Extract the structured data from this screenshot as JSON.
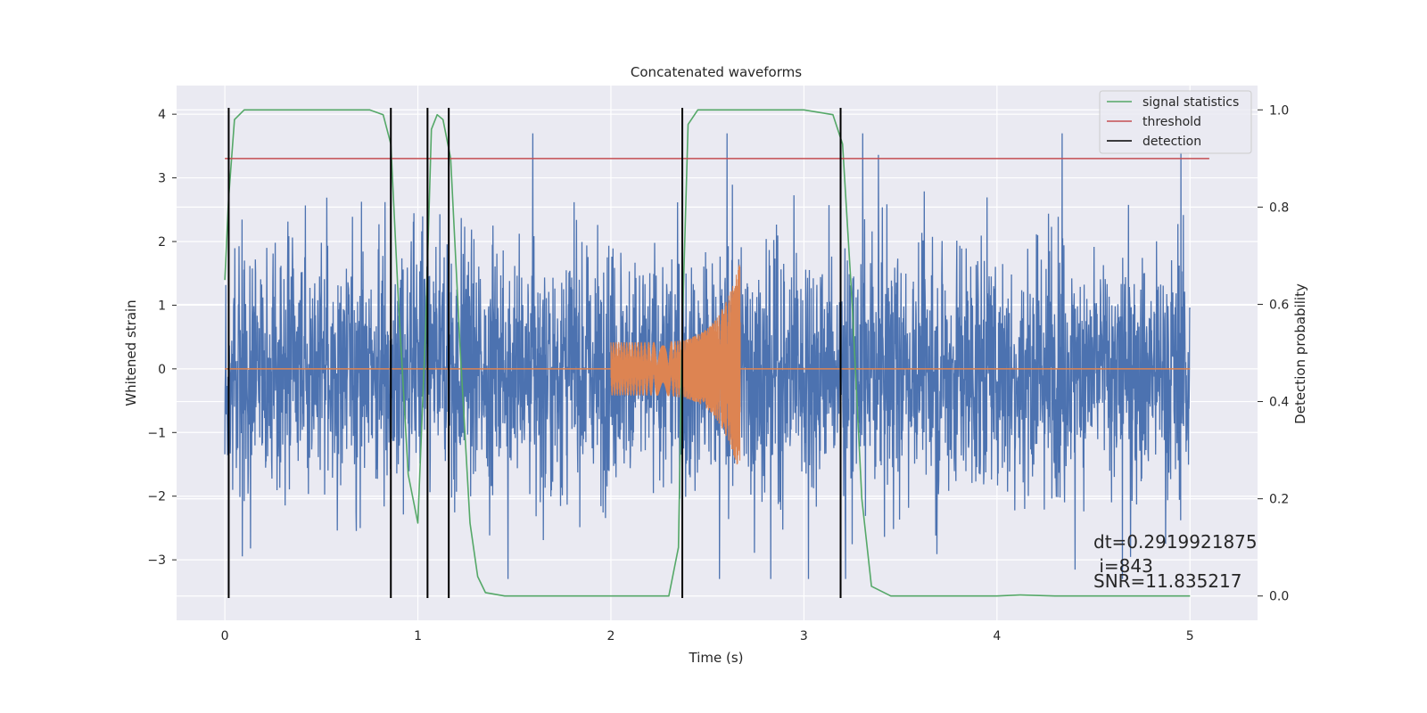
{
  "chart_data": {
    "type": "line",
    "title": "Concatenated waveforms",
    "xlabel": "Time (s)",
    "ylabel": "Whitened strain",
    "ylabel_right": "Detection probability",
    "xlim": [
      -0.25,
      5.35
    ],
    "ylim": [
      -3.95,
      4.45
    ],
    "ylim_right": [
      -0.05,
      1.05
    ],
    "xticks": [
      0,
      1,
      2,
      3,
      4,
      5
    ],
    "yticks": [
      -3,
      -2,
      -1,
      0,
      1,
      2,
      3,
      4
    ],
    "yticks_right": [
      0.0,
      0.2,
      0.4,
      0.6,
      0.8,
      1.0
    ],
    "xtick_labels": [
      "0",
      "1",
      "2",
      "3",
      "4",
      "5"
    ],
    "ytick_labels": [
      "−3",
      "−2",
      "−1",
      "0",
      "1",
      "2",
      "3",
      "4"
    ],
    "ytick_right_labels": [
      "0.0",
      "0.2",
      "0.4",
      "0.6",
      "0.8",
      "1.0"
    ],
    "grid": true,
    "legend_position": "top-right",
    "colors": {
      "background": "#eaeaf2",
      "noise": "#4c72b0",
      "injection": "#dd8452",
      "signal_statistics": "#55a868",
      "threshold": "#c44e52",
      "detection": "#000000"
    },
    "series": [
      {
        "name": "signal statistics",
        "axis": "right",
        "x": [
          0.0,
          0.02,
          0.05,
          0.1,
          0.2,
          0.5,
          0.75,
          0.82,
          0.86,
          0.9,
          0.95,
          1.0,
          1.04,
          1.07,
          1.1,
          1.13,
          1.17,
          1.22,
          1.27,
          1.31,
          1.35,
          1.45,
          2.0,
          2.3,
          2.35,
          2.37,
          2.4,
          2.45,
          2.6,
          3.0,
          3.15,
          3.2,
          3.25,
          3.3,
          3.35,
          3.45,
          4.0,
          4.12,
          4.3,
          5.0
        ],
        "y": [
          0.65,
          0.82,
          0.98,
          1.0,
          1.0,
          1.0,
          1.0,
          0.99,
          0.93,
          0.6,
          0.25,
          0.15,
          0.55,
          0.96,
          0.99,
          0.98,
          0.9,
          0.5,
          0.15,
          0.04,
          0.007,
          0.0,
          0.0,
          0.0,
          0.1,
          0.55,
          0.97,
          1.0,
          1.0,
          1.0,
          0.99,
          0.93,
          0.6,
          0.2,
          0.02,
          0.0,
          0.0,
          0.002,
          0.0,
          0.0
        ]
      },
      {
        "name": "threshold",
        "axis": "right",
        "x": [
          0.0,
          5.1
        ],
        "y": [
          0.9,
          0.9
        ]
      },
      {
        "name": "detection",
        "axis": "left",
        "x": [
          0.02,
          0.86,
          1.05,
          1.16,
          2.37,
          3.19
        ],
        "y_range": [
          -3.6,
          4.1
        ]
      }
    ],
    "injection": {
      "x_start": 2.0,
      "x_end": 2.67,
      "amplitude_start": 0.42,
      "amplitude_end": 1.7,
      "zero_line_x": [
        0.0,
        5.0
      ]
    },
    "noise": {
      "x_range": [
        0.0,
        5.0
      ],
      "y_extent": [
        -3.3,
        3.7
      ]
    },
    "annotations": [
      "dt=0.2919921875",
      " i=843",
      "SNR=11.835217"
    ]
  }
}
